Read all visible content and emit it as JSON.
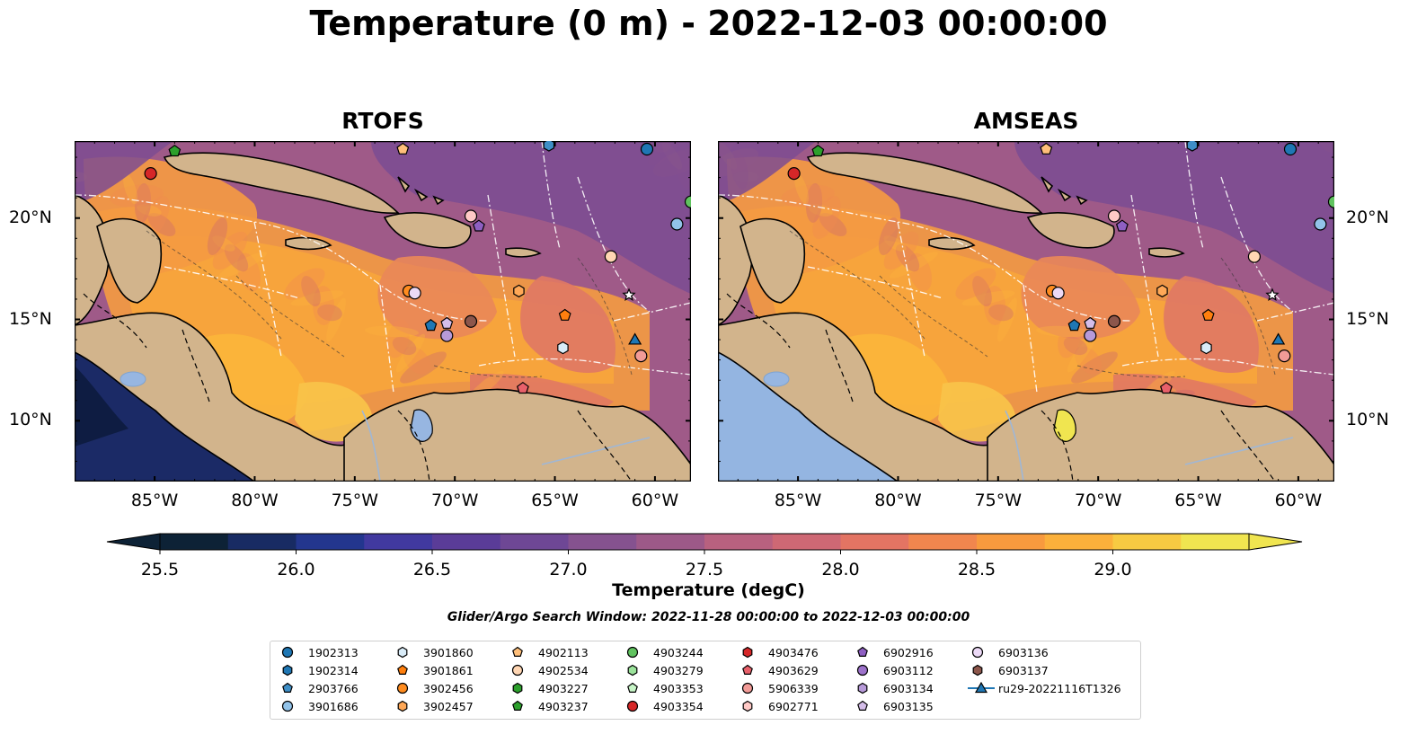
{
  "figure": {
    "title": "Temperature (0 m) - 2022-12-03 00:00:00",
    "panels": [
      {
        "title": "RTOFS"
      },
      {
        "title": "AMSEAS"
      }
    ],
    "lon_ticks": [
      "85°W",
      "80°W",
      "75°W",
      "70°W",
      "65°W",
      "60°W"
    ],
    "lat_ticks": [
      "20°N",
      "15°N",
      "10°N"
    ],
    "colorbar": {
      "label": "Temperature (degC)",
      "tick_labels": [
        "25.5",
        "26.0",
        "26.5",
        "27.0",
        "27.5",
        "28.0",
        "28.5",
        "29.0"
      ],
      "min": 25.5,
      "max": 29.0,
      "colors": [
        "#0d2236",
        "#182b63",
        "#23368e",
        "#41399f",
        "#5a3c98",
        "#6e4795",
        "#85528f",
        "#9d5988",
        "#b8617f",
        "#ce6874",
        "#e37463",
        "#f1864e",
        "#f89a3e",
        "#fbb03b",
        "#f7ca42",
        "#f0e550"
      ]
    },
    "search_window": "Glider/Argo Search Window: 2022-11-28 00:00:00 to 2022-12-03 00:00:00",
    "legend": [
      {
        "label": "1902313",
        "marker": "circle",
        "color": "#1f77b4"
      },
      {
        "label": "1902314",
        "marker": "hexagon",
        "color": "#1f77b4"
      },
      {
        "label": "2903766",
        "marker": "pentagon",
        "color": "#3f8fc7"
      },
      {
        "label": "3901686",
        "marker": "circle",
        "color": "#92c3e9"
      },
      {
        "label": "3901860",
        "marker": "hexagon",
        "color": "#d9ecf8"
      },
      {
        "label": "3901861",
        "marker": "pentagon",
        "color": "#ff7f0e"
      },
      {
        "label": "3902456",
        "marker": "circle",
        "color": "#ff8c1f"
      },
      {
        "label": "3902457",
        "marker": "hexagon",
        "color": "#ffa857"
      },
      {
        "label": "4902113",
        "marker": "pentagon",
        "color": "#ffbf7a"
      },
      {
        "label": "4902534",
        "marker": "circle",
        "color": "#ffd6b3"
      },
      {
        "label": "4903227",
        "marker": "hexagon",
        "color": "#2ca02c"
      },
      {
        "label": "4903237",
        "marker": "pentagon",
        "color": "#2ca02c"
      },
      {
        "label": "4903244",
        "marker": "circle",
        "color": "#60c35f"
      },
      {
        "label": "4903279",
        "marker": "hexagon",
        "color": "#9be39b"
      },
      {
        "label": "4903353",
        "marker": "pentagon",
        "color": "#c7f5c7"
      },
      {
        "label": "4903354",
        "marker": "circle",
        "color": "#d62728"
      },
      {
        "label": "4903476",
        "marker": "hexagon",
        "color": "#d62728"
      },
      {
        "label": "4903629",
        "marker": "pentagon",
        "color": "#e8606a"
      },
      {
        "label": "5906339",
        "marker": "circle",
        "color": "#f29b97"
      },
      {
        "label": "6902771",
        "marker": "hexagon",
        "color": "#ffc9c6"
      },
      {
        "label": "6902916",
        "marker": "pentagon",
        "color": "#8e5fc2"
      },
      {
        "label": "6903112",
        "marker": "circle",
        "color": "#9d72cb"
      },
      {
        "label": "6903134",
        "marker": "hexagon",
        "color": "#b79ad9"
      },
      {
        "label": "6903135",
        "marker": "pentagon",
        "color": "#d4bde9"
      },
      {
        "label": "6903136",
        "marker": "circle",
        "color": "#ecd9f6"
      },
      {
        "label": "6903137",
        "marker": "hexagon",
        "color": "#8c564b"
      },
      {
        "label": "ru29-20221116T1326",
        "marker": "triangle-line",
        "color": "#1f77b4"
      }
    ]
  }
}
